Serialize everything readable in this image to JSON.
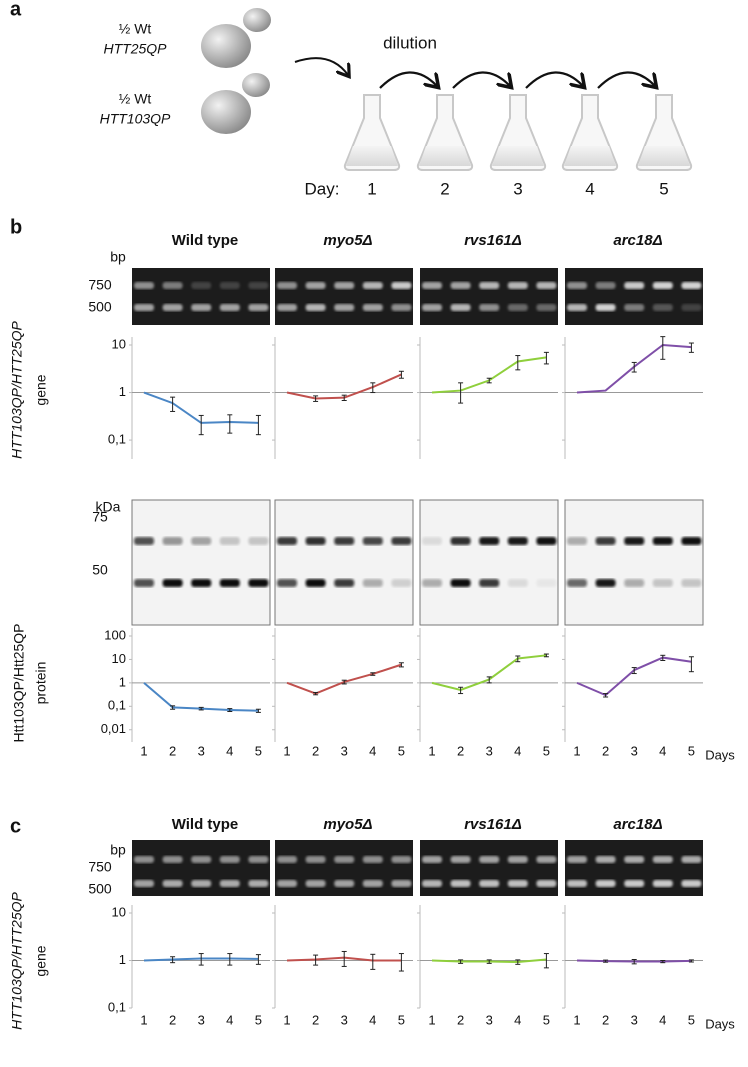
{
  "panel_a": {
    "label": "a",
    "strains": [
      {
        "line1": "½ Wt",
        "line2": "HTT25QP"
      },
      {
        "line1": "½ Wt",
        "line2": "HTT103QP"
      }
    ],
    "dilution": "dilution",
    "day_label": "Day:",
    "days": [
      "1",
      "2",
      "3",
      "4",
      "5"
    ]
  },
  "panel_b": {
    "label": "b",
    "strains": [
      "Wild type",
      "myo5Δ",
      "rvs161Δ",
      "arc18Δ"
    ],
    "bp": "bp",
    "bp_ticks": [
      "750",
      "500"
    ],
    "kda": "kDa",
    "kda_ticks": [
      "75",
      "50"
    ]
  },
  "panel_c": {
    "label": "c",
    "strains": [
      "Wild type",
      "myo5Δ",
      "rvs161Δ",
      "arc18Δ"
    ],
    "bp": "bp",
    "bp_ticks": [
      "750",
      "500"
    ]
  },
  "chart_data": [
    {
      "type": "line",
      "log_scale": true,
      "baseline": 1,
      "y_label": [
        "HTT103QP/HTT25QP",
        "gene"
      ],
      "ylim": [
        0.04,
        10
      ],
      "yticks": [
        10,
        1,
        {
          "value": 0.1,
          "label": "0,1"
        }
      ],
      "series": [
        {
          "color": "#4a86c5",
          "values": [
            1,
            0.6,
            0.23,
            0.24,
            0.23
          ],
          "errors": [
            0,
            0.2,
            0.1,
            0.1,
            0.1
          ]
        },
        {
          "color": "#c0504d",
          "values": [
            1,
            0.75,
            0.78,
            1.3,
            2.4
          ],
          "errors": [
            0,
            0.1,
            0.1,
            0.3,
            0.4
          ]
        },
        {
          "color": "#8fcf3c",
          "values": [
            1,
            1.1,
            1.8,
            4.5,
            5.5
          ],
          "errors": [
            0,
            0.5,
            0.2,
            1.5,
            1.5
          ]
        },
        {
          "color": "#7f4fa8",
          "values": [
            1,
            1.1,
            3.5,
            10,
            9
          ],
          "errors": [
            0,
            0,
            0.8,
            5,
            2
          ]
        }
      ]
    },
    {
      "type": "line",
      "log_scale": true,
      "baseline": 1,
      "y_label": [
        "Htt103QP/Htt25QP",
        "protein"
      ],
      "ylim": [
        0.003,
        100
      ],
      "yticks": [
        100,
        10,
        1,
        {
          "value": 0.1,
          "label": "0,1"
        },
        {
          "value": 0.01,
          "label": "0,01"
        }
      ],
      "categories": [
        "1",
        "2",
        "3",
        "4",
        "5"
      ],
      "x_label": "Days",
      "series": [
        {
          "color": "#4a86c5",
          "values": [
            1,
            0.09,
            0.08,
            0.07,
            0.065
          ],
          "errors": [
            0,
            0.015,
            0.01,
            0.01,
            0.01
          ]
        },
        {
          "color": "#c0504d",
          "values": [
            1,
            0.35,
            1.1,
            2.4,
            6
          ],
          "errors": [
            0,
            0.04,
            0.2,
            0.3,
            1.2
          ]
        },
        {
          "color": "#8fcf3c",
          "values": [
            1,
            0.5,
            1.4,
            11,
            15
          ],
          "errors": [
            0,
            0.15,
            0.4,
            3,
            2
          ]
        },
        {
          "color": "#7f4fa8",
          "values": [
            1,
            0.3,
            3.5,
            12,
            8
          ],
          "errors": [
            0,
            0.05,
            1,
            3,
            5
          ]
        }
      ]
    },
    {
      "type": "line",
      "log_scale": true,
      "baseline": 1,
      "y_label": [
        "HTT103QP/HTT25QP",
        "gene"
      ],
      "ylim": [
        0.1,
        10
      ],
      "yticks": [
        10,
        1,
        {
          "value": 0.1,
          "label": "0,1"
        }
      ],
      "categories": [
        "1",
        "2",
        "3",
        "4",
        "5"
      ],
      "x_label": "Days",
      "series": [
        {
          "color": "#4a86c5",
          "values": [
            1,
            1.05,
            1.1,
            1.1,
            1.08
          ],
          "errors": [
            0,
            0.15,
            0.3,
            0.3,
            0.25
          ]
        },
        {
          "color": "#c0504d",
          "values": [
            1,
            1.05,
            1.15,
            1.0,
            1.0
          ],
          "errors": [
            0,
            0.25,
            0.4,
            0.35,
            0.4
          ]
        },
        {
          "color": "#8fcf3c",
          "values": [
            1,
            0.95,
            0.95,
            0.93,
            1.05
          ],
          "errors": [
            0,
            0.08,
            0.08,
            0.1,
            0.35
          ]
        },
        {
          "color": "#7f4fa8",
          "values": [
            1,
            0.97,
            0.95,
            0.95,
            0.98
          ],
          "errors": [
            0,
            0.05,
            0.1,
            0.05,
            0.05
          ]
        }
      ]
    }
  ]
}
